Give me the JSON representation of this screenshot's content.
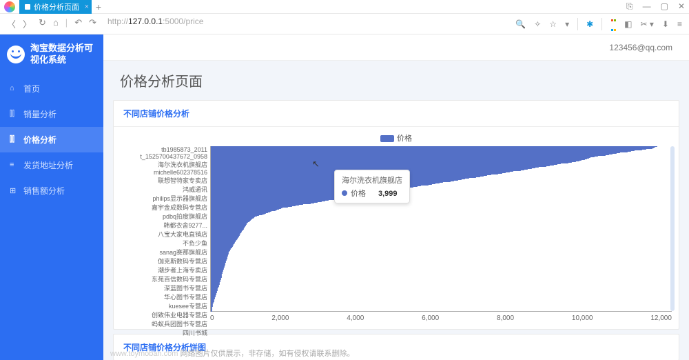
{
  "browser": {
    "tab_title": "价格分析页面",
    "url_prefix": "http://",
    "url_host": "127.0.0.1",
    "url_port_path": ":5000/price",
    "win_controls": [
      "⎘",
      "—",
      "▢",
      "✕"
    ]
  },
  "app": {
    "title": "淘宝数据分析可视化系统",
    "user_email": "123456@qq.com",
    "nav": [
      {
        "icon": "⌂",
        "label": "首页"
      },
      {
        "icon": "⫿⫿",
        "label": "销量分析"
      },
      {
        "icon": "⫿⫿",
        "label": "价格分析",
        "active": true
      },
      {
        "icon": "≡",
        "label": "发货地址分析"
      },
      {
        "icon": "⊞",
        "label": "销售额分析"
      }
    ],
    "page_title": "价格分析页面",
    "card1_title": "不同店铺价格分析",
    "card2_title": "不同店铺价格分析饼图"
  },
  "chart": {
    "type": "bar-horizontal",
    "legend_label": "价格",
    "legend_color": "#5470c6",
    "x_ticks": [
      "0",
      "2,000",
      "4,000",
      "6,000",
      "8,000",
      "10,000",
      "12,000"
    ],
    "x_max": 12500,
    "y_labels_shown": [
      "tb1985873_2011",
      "t_1525700437672_0958",
      "海尔洗衣机旗舰店",
      "michelle602378516",
      "联想智特家专卖店",
      "鸿威通讯",
      "philips显示器旗舰店",
      "嘉宇金成数码专营店",
      "pdbq拍度旗舰店",
      "韩都衣舍9277...",
      "八宝大家电直销店",
      "不负少鱼",
      "sanag赛那旗舰店",
      "伽克斯数码专营店",
      "潮步者上海专卖店",
      "东苑百信数码专营店",
      "深蓝图书专营店",
      "华心图书专营店",
      "kuesee专营店",
      "创致伟业电器专营店",
      "蚂蚁兵团图书专营店",
      "四川书城"
    ],
    "series": [
      12100,
      12050,
      12020,
      11980,
      11900,
      11800,
      11700,
      11500,
      11400,
      11300,
      11200,
      11100,
      11000,
      10900,
      10800,
      10700,
      10600,
      10500,
      10400,
      10300,
      10250,
      10200,
      10150,
      10100,
      10050,
      10000,
      9900,
      9800,
      9700,
      9600,
      9500,
      9400,
      9300,
      9200,
      9100,
      9000,
      8900,
      8800,
      8700,
      8600,
      8500,
      8400,
      8300,
      8200,
      8100,
      8000,
      7900,
      7800,
      7700,
      7600,
      7500,
      7400,
      7300,
      7200,
      7100,
      7000,
      6900,
      6800,
      6700,
      6600,
      6500,
      6400,
      6300,
      6200,
      6100,
      6000,
      5900,
      5800,
      5700,
      5600,
      5500,
      5400,
      5300,
      5200,
      5100,
      5000,
      4900,
      4800,
      4700,
      4600,
      4500,
      4400,
      4300,
      4200,
      4100,
      4000,
      3900,
      3800,
      3700,
      3600,
      3500,
      3400,
      3300,
      3200,
      3100,
      3000,
      2900,
      2800,
      2700,
      2600,
      2500,
      2400,
      2300,
      2200,
      2100,
      2000,
      1950,
      1900,
      1850,
      1800,
      1750,
      1700,
      1650,
      1600,
      1550,
      1500,
      1450,
      1400,
      1350,
      1300,
      1250,
      1200,
      1180,
      1160,
      1140,
      1120,
      1100,
      1080,
      1060,
      1040,
      1020,
      1000,
      990,
      980,
      970,
      960,
      950,
      940,
      930,
      920,
      910,
      900,
      890,
      880,
      870,
      860,
      850,
      840,
      830,
      820,
      810,
      800,
      790,
      780,
      770,
      760,
      750,
      740,
      730,
      720,
      710,
      700,
      690,
      680,
      670,
      660,
      650,
      640,
      630,
      620,
      610,
      600,
      590,
      580,
      570,
      560,
      550,
      540,
      530,
      520,
      510,
      500,
      495,
      490,
      485,
      480,
      475,
      470,
      465,
      460,
      455,
      450,
      445,
      440,
      435,
      430,
      425,
      420,
      415,
      410,
      405,
      400,
      395,
      390,
      385,
      380,
      375,
      370,
      365,
      360,
      355,
      350,
      345,
      340,
      335,
      330,
      325,
      320,
      315,
      310,
      305,
      300,
      298,
      296,
      294,
      292,
      290,
      285,
      280,
      275,
      270,
      265,
      260,
      255,
      250,
      245,
      240,
      235,
      230,
      225,
      220,
      215,
      210,
      205,
      200,
      195,
      190,
      185,
      180,
      175,
      170,
      165,
      160,
      155,
      150,
      145,
      140,
      135,
      130,
      125,
      120,
      115,
      110,
      105,
      100,
      95,
      90,
      85,
      80,
      75,
      70,
      65,
      60,
      55,
      50,
      48,
      46,
      44,
      42,
      40,
      38,
      36,
      34,
      32,
      30
    ],
    "tooltip": {
      "title": "海尔洗衣机旗舰店",
      "series_name": "价格",
      "value": "3,999"
    }
  },
  "footer": {
    "domain": "www.toymoban.com",
    "text": " 网络图片仅供展示，非存储，如有侵权请联系删除。"
  }
}
